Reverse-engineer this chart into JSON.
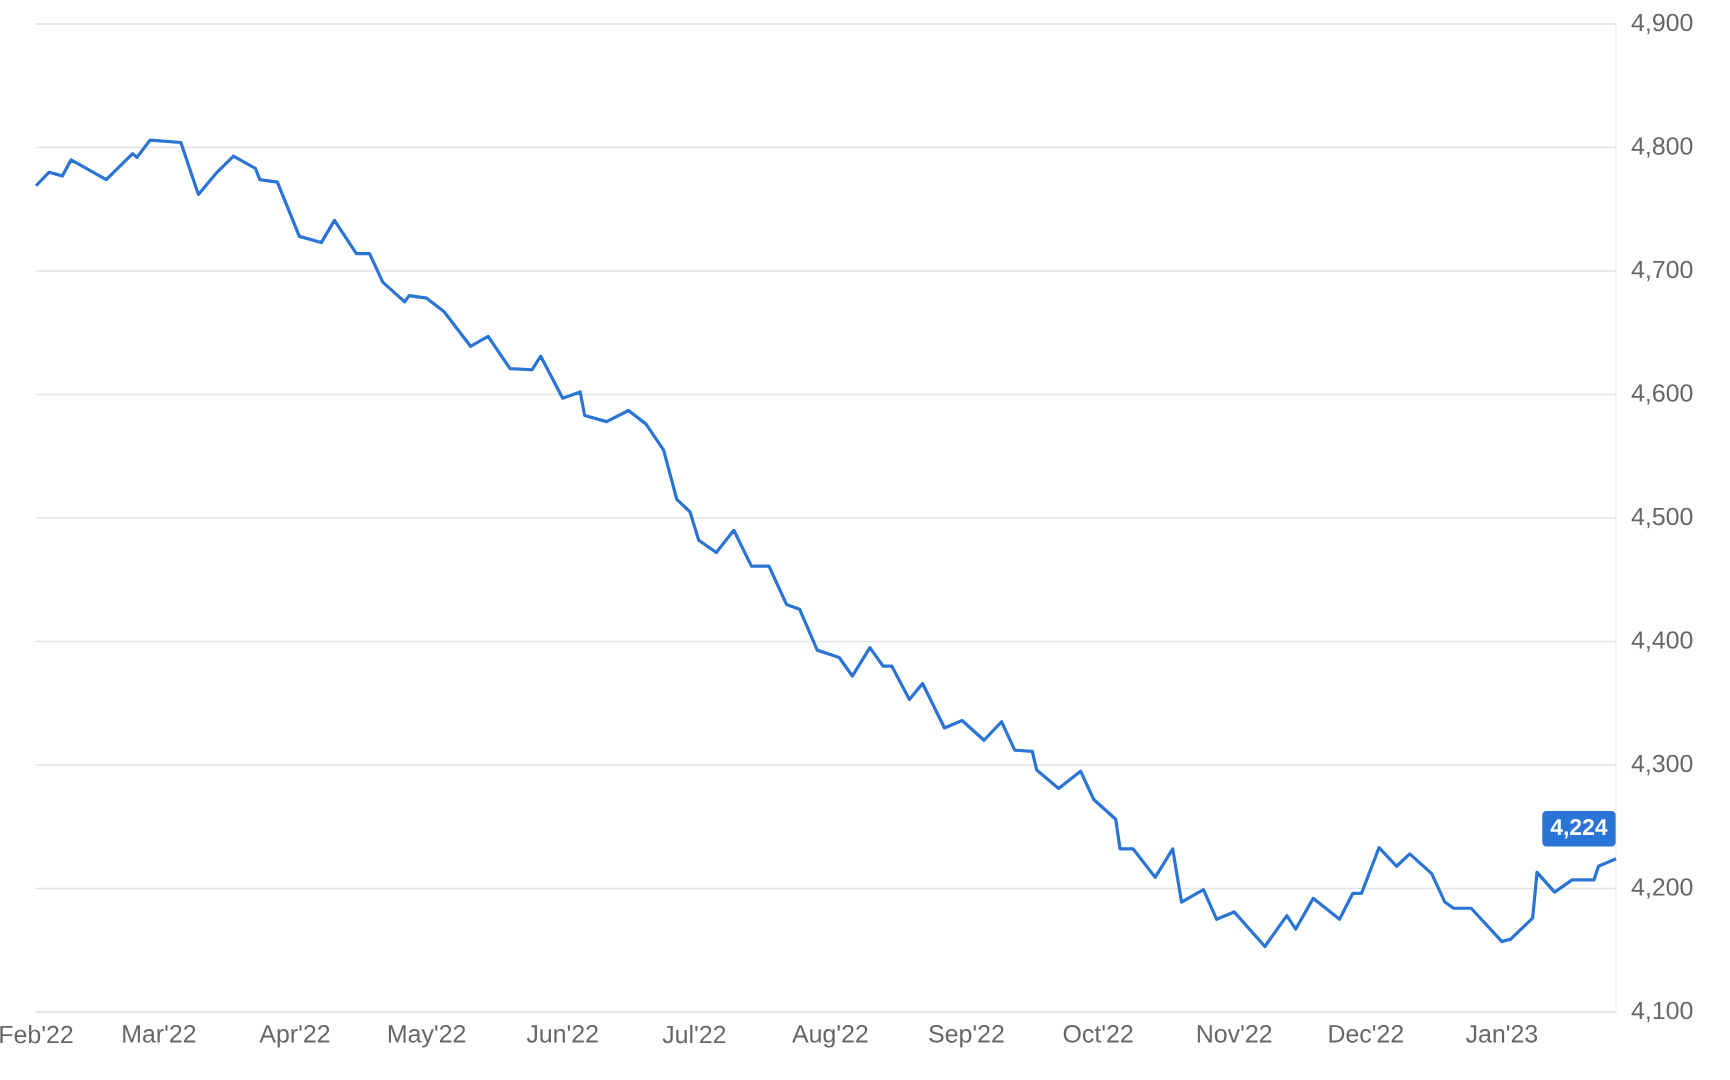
{
  "chart_data": {
    "type": "line",
    "x": [
      "2022-02-01",
      "2022-02-04",
      "2022-02-07",
      "2022-02-09",
      "2022-02-17",
      "2022-02-23",
      "2022-02-24",
      "2022-02-27",
      "2022-03-06",
      "2022-03-10",
      "2022-03-14",
      "2022-03-18",
      "2022-03-23",
      "2022-03-24",
      "2022-03-28",
      "2022-04-02",
      "2022-04-07",
      "2022-04-10",
      "2022-04-15",
      "2022-04-18",
      "2022-04-21",
      "2022-04-26",
      "2022-04-27",
      "2022-05-01",
      "2022-05-05",
      "2022-05-11",
      "2022-05-15",
      "2022-05-20",
      "2022-05-25",
      "2022-05-27",
      "2022-06-01",
      "2022-06-05",
      "2022-06-06",
      "2022-06-11",
      "2022-06-16",
      "2022-06-20",
      "2022-06-24",
      "2022-06-27",
      "2022-06-30",
      "2022-07-02",
      "2022-07-06",
      "2022-07-10",
      "2022-07-14",
      "2022-07-18",
      "2022-07-22",
      "2022-07-25",
      "2022-07-29",
      "2022-08-03",
      "2022-08-06",
      "2022-08-10",
      "2022-08-13",
      "2022-08-15",
      "2022-08-19",
      "2022-08-22",
      "2022-08-27",
      "2022-08-31",
      "2022-09-05",
      "2022-09-09",
      "2022-09-12",
      "2022-09-16",
      "2022-09-17",
      "2022-09-22",
      "2022-09-27",
      "2022-09-30",
      "2022-10-05",
      "2022-10-06",
      "2022-10-09",
      "2022-10-14",
      "2022-10-18",
      "2022-10-20",
      "2022-10-25",
      "2022-10-28",
      "2022-11-01",
      "2022-11-08",
      "2022-11-13",
      "2022-11-15",
      "2022-11-19",
      "2022-11-25",
      "2022-11-28",
      "2022-11-30",
      "2022-12-04",
      "2022-12-08",
      "2022-12-11",
      "2022-12-16",
      "2022-12-19",
      "2022-12-21",
      "2022-12-25",
      "2023-01-01",
      "2023-01-03",
      "2023-01-08",
      "2023-01-09",
      "2023-01-13",
      "2023-01-17",
      "2023-01-22",
      "2023-01-23",
      "2023-01-27"
    ],
    "series": [
      {
        "color": "#2a74d5",
        "values": [
          4769,
          4780,
          4777,
          4790,
          4774,
          4795,
          4792,
          4806,
          4804,
          4762,
          4779,
          4793,
          4783,
          4774,
          4772,
          4728,
          4723,
          4741,
          4714,
          4714,
          4691,
          4675,
          4680,
          4678,
          4667,
          4639,
          4647,
          4621,
          4620,
          4631,
          4597,
          4602,
          4583,
          4578,
          4587,
          4576,
          4555,
          4515,
          4505,
          4482,
          4472,
          4490,
          4461,
          4461,
          4430,
          4426,
          4393,
          4387,
          4372,
          4395,
          4380,
          4380,
          4353,
          4366,
          4330,
          4336,
          4320,
          4335,
          4312,
          4311,
          4296,
          4281,
          4295,
          4272,
          4256,
          4232,
          4232,
          4209,
          4232,
          4189,
          4199,
          4175,
          4181,
          4153,
          4178,
          4167,
          4192,
          4175,
          4196,
          4196,
          4233,
          4218,
          4228,
          4212,
          4189,
          4184,
          4184,
          4157,
          4159,
          4176,
          4213,
          4197,
          4207,
          4207,
          4218,
          4224
        ]
      }
    ],
    "xlim": [
      "2022-02-01",
      "2023-01-27"
    ],
    "xticks": [
      {
        "value": "2022-02-01",
        "label": "Feb'22"
      },
      {
        "value": "2022-03-01",
        "label": "Mar'22"
      },
      {
        "value": "2022-04-01",
        "label": "Apr'22"
      },
      {
        "value": "2022-05-01",
        "label": "May'22"
      },
      {
        "value": "2022-06-01",
        "label": "Jun'22"
      },
      {
        "value": "2022-07-01",
        "label": "Jul'22"
      },
      {
        "value": "2022-08-01",
        "label": "Aug'22"
      },
      {
        "value": "2022-09-01",
        "label": "Sep'22"
      },
      {
        "value": "2022-10-01",
        "label": "Oct'22"
      },
      {
        "value": "2022-11-01",
        "label": "Nov'22"
      },
      {
        "value": "2022-12-01",
        "label": "Dec'22"
      },
      {
        "value": "2023-01-01",
        "label": "Jan'23"
      }
    ],
    "ylim": [
      4100,
      4900
    ],
    "yticks": [
      {
        "value": 4100,
        "label": "4,100"
      },
      {
        "value": 4200,
        "label": "4,200"
      },
      {
        "value": 4300,
        "label": "4,300"
      },
      {
        "value": 4400,
        "label": "4,400"
      },
      {
        "value": 4500,
        "label": "4,500"
      },
      {
        "value": 4600,
        "label": "4,600"
      },
      {
        "value": 4700,
        "label": "4,700"
      },
      {
        "value": 4800,
        "label": "4,800"
      },
      {
        "value": 4900,
        "label": "4,900"
      }
    ],
    "grid": "y",
    "annotations": [
      {
        "text": "4,224",
        "x": "2023-01-27",
        "y": 4224
      }
    ]
  }
}
